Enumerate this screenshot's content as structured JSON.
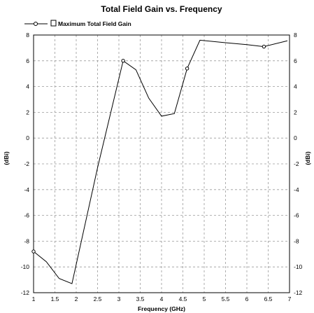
{
  "chart_data": {
    "type": "line",
    "title": "Total Field Gain vs. Frequency",
    "xlabel": "Frequency (GHz)",
    "ylabel": "(dBi)",
    "ylabel_right": "(dBi)",
    "xlim": [
      1,
      7
    ],
    "ylim": [
      -12,
      8
    ],
    "x_ticks": [
      "1",
      "1.5",
      "2",
      "2.5",
      "3",
      "3.5",
      "4",
      "4.5",
      "5",
      "5.5",
      "6",
      "6.5",
      "7"
    ],
    "y_ticks": [
      "8",
      "6",
      "4",
      "2",
      "0",
      "-2",
      "-4",
      "-6",
      "-8",
      "-10",
      "-12"
    ],
    "grid": true,
    "legend_position": "top-left",
    "series": [
      {
        "name": "Maximum Total Field Gain",
        "color": "#000000",
        "x": [
          1.0,
          1.3,
          1.6,
          1.9,
          2.5,
          3.1,
          3.4,
          3.7,
          4.0,
          4.3,
          4.6,
          4.9,
          5.5,
          6.0,
          6.4,
          6.95
        ],
        "y": [
          -8.8,
          -9.6,
          -10.9,
          -11.3,
          -2.3,
          6.0,
          5.3,
          3.1,
          1.7,
          1.9,
          5.4,
          7.6,
          7.4,
          7.25,
          7.1,
          7.55
        ],
        "marker_x": [
          1.0,
          3.1,
          4.6,
          6.4
        ]
      }
    ]
  }
}
